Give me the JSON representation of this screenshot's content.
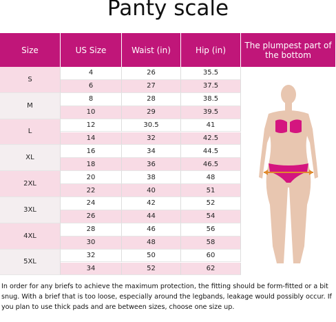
{
  "header": {
    "title": "Panty scale"
  },
  "table": {
    "headers": [
      "Size",
      "US Size",
      "Waist (in)",
      "Hip (in)",
      "The plumpest part of the bottom"
    ],
    "groups": [
      {
        "size": "S",
        "rows": [
          [
            4,
            26,
            35.5
          ],
          [
            6,
            27,
            37.5
          ]
        ]
      },
      {
        "size": "M",
        "rows": [
          [
            8,
            28,
            38.5
          ],
          [
            10,
            29,
            39.5
          ]
        ]
      },
      {
        "size": "L",
        "rows": [
          [
            12,
            30.5,
            41
          ],
          [
            14,
            32,
            42.5
          ]
        ]
      },
      {
        "size": "XL",
        "rows": [
          [
            16,
            34,
            44.5
          ],
          [
            18,
            36,
            46.5
          ]
        ]
      },
      {
        "size": "2XL",
        "rows": [
          [
            20,
            38,
            48
          ],
          [
            22,
            40,
            51
          ]
        ]
      },
      {
        "size": "3XL",
        "rows": [
          [
            24,
            42,
            52
          ],
          [
            26,
            44,
            54
          ]
        ]
      },
      {
        "size": "4XL",
        "rows": [
          [
            28,
            46,
            56
          ],
          [
            30,
            48,
            58
          ]
        ]
      },
      {
        "size": "5XL",
        "rows": [
          [
            32,
            50,
            60
          ],
          [
            34,
            52,
            62
          ]
        ]
      }
    ]
  },
  "note": "In order for any briefs to achieve the maximum protection, the fitting should be form-fitted or a bit snug.  With a brief that is too loose, especially around the legbands, leakage would possibly occur.  If you plan to use thick pads and are between sizes, choose one size up."
}
